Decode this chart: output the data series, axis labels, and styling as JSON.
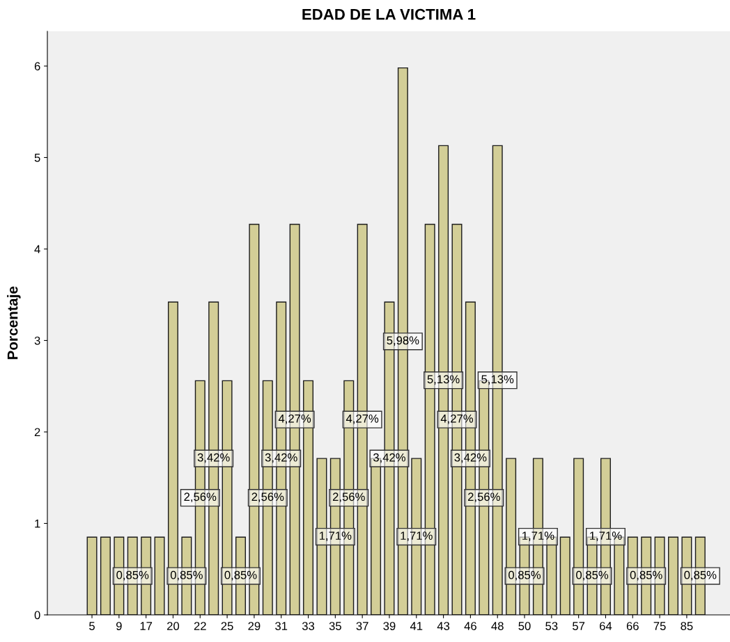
{
  "chart_data": {
    "type": "bar",
    "title": "EDAD DE LA VICTIMA 1",
    "ylabel": "Porcentaje",
    "categories": [
      "5",
      null,
      "9",
      null,
      "17",
      null,
      "20",
      null,
      "22",
      null,
      "25",
      null,
      "29",
      null,
      "31",
      null,
      "33",
      null,
      "35",
      null,
      "37",
      null,
      "39",
      null,
      "41",
      null,
      "43",
      null,
      "46",
      null,
      "48",
      null,
      "50",
      null,
      "53",
      null,
      "57",
      null,
      "64",
      null,
      "66",
      null,
      "75",
      null,
      "85",
      null
    ],
    "values": [
      0.85,
      0.85,
      0.85,
      0.85,
      0.85,
      0.85,
      3.42,
      0.85,
      2.56,
      3.42,
      2.56,
      0.85,
      4.27,
      2.56,
      3.42,
      4.27,
      2.56,
      1.71,
      1.71,
      2.56,
      4.27,
      1.71,
      3.42,
      5.98,
      1.71,
      4.27,
      5.13,
      4.27,
      3.42,
      2.56,
      5.13,
      1.71,
      0.85,
      1.71,
      0.85,
      0.85,
      1.71,
      0.85,
      1.71,
      0.85,
      0.85,
      0.85,
      0.85,
      0.85,
      0.85,
      0.85
    ],
    "value_labels": [
      null,
      null,
      null,
      "0,85%",
      null,
      null,
      null,
      "0,85%",
      "2,56%",
      "3,42%",
      null,
      "0,85%",
      null,
      "2,56%",
      "3,42%",
      "4,27%",
      null,
      null,
      "1,71%",
      "2,56%",
      "4,27%",
      null,
      "3,42%",
      "5,98%",
      "1,71%",
      null,
      "5,13%",
      "4,27%",
      "3,42%",
      "2,56%",
      "5,13%",
      null,
      "0,85%",
      "1,71%",
      null,
      null,
      null,
      "0,85%",
      "1,71%",
      null,
      null,
      "0,85%",
      null,
      null,
      null,
      "0,85%"
    ],
    "color": "#d3ce97",
    "ylim": [
      0,
      6.38
    ],
    "yticks": [
      0,
      1,
      2,
      3,
      4,
      5,
      6
    ],
    "grid": false
  }
}
